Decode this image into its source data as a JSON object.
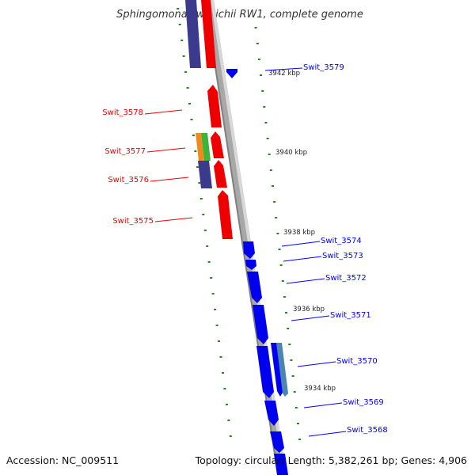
{
  "title": "Sphingomonas wittichii RW1, complete genome",
  "footer": {
    "accession": "Accession: NC_009511",
    "summary": "Topology: circular; Length: 5,382,261 bp; Genes: 4,906"
  },
  "scale_labels": [
    "3942 kbp",
    "3940 kbp",
    "3938 kbp",
    "3936 kbp",
    "3934 kbp"
  ],
  "gene_labels_forward": [
    "Swit_3579",
    "Swit_3574",
    "Swit_3573",
    "Swit_3572",
    "Swit_3571",
    "Swit_3570",
    "Swit_3569",
    "Swit_3568"
  ],
  "gene_labels_reverse": [
    "Swit_3578",
    "Swit_3577",
    "Swit_3576",
    "Swit_3575"
  ],
  "colors": {
    "forward_gene": "#0000ee",
    "reverse_gene": "#ee0000",
    "purple_track": "#3c3a8c",
    "backbone": "#8c8c8c",
    "tick": "#1a8a1a",
    "orange": "#f08a1e",
    "green": "#3cb43c",
    "steel": "#4a86b0"
  }
}
